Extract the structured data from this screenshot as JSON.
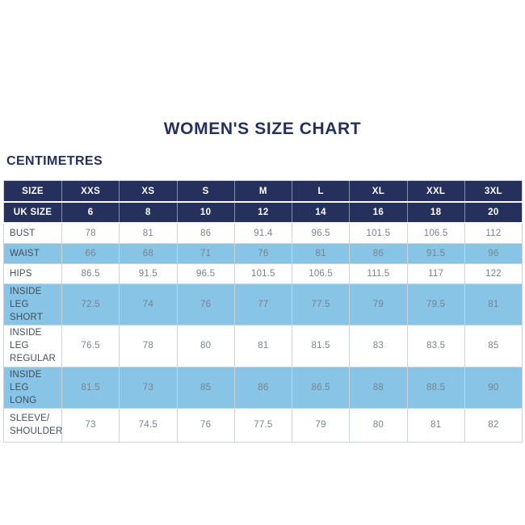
{
  "page": {
    "title": "WOMEN'S SIZE CHART",
    "units_label": "CENTIMETRES"
  },
  "colors": {
    "navy": "#25315C",
    "light_blue": "#87C4E5",
    "value_text": "#79838E",
    "label_text": "#454D5A",
    "border": "#CDD2D7",
    "header_text": "#FFFFFF"
  },
  "chart_data": {
    "type": "table",
    "title": "WOMEN'S SIZE CHART",
    "units": "CENTIMETRES",
    "header_rows": [
      {
        "label": "SIZE",
        "values": [
          "XXS",
          "XS",
          "S",
          "M",
          "L",
          "XL",
          "XXL",
          "3XL"
        ]
      },
      {
        "label": "UK SIZE",
        "values": [
          "6",
          "8",
          "10",
          "12",
          "14",
          "16",
          "18",
          "20"
        ]
      }
    ],
    "rows": [
      {
        "label": "BUST",
        "values": [
          "78",
          "81",
          "86",
          "91.4",
          "96.5",
          "101.5",
          "106.5",
          "112"
        ],
        "shaded": false
      },
      {
        "label": "WAIST",
        "values": [
          "66",
          "68",
          "71",
          "76",
          "81",
          "86",
          "91.5",
          "96"
        ],
        "shaded": true
      },
      {
        "label": "HIPS",
        "values": [
          "86.5",
          "91.5",
          "96.5",
          "101.5",
          "106.5",
          "111.5",
          "117",
          "122"
        ],
        "shaded": false
      },
      {
        "label": "INSIDE LEG\nSHORT",
        "values": [
          "72.5",
          "74",
          "76",
          "77",
          "77.5",
          "79",
          "79.5",
          "81"
        ],
        "shaded": true
      },
      {
        "label": "INSIDE LEG\nREGULAR",
        "values": [
          "76.5",
          "78",
          "80",
          "81",
          "81.5",
          "83",
          "83.5",
          "85"
        ],
        "shaded": false
      },
      {
        "label": "INSIDE LEG\nLONG",
        "values": [
          "81.5",
          "73",
          "85",
          "86",
          "86.5",
          "88",
          "88.5",
          "90"
        ],
        "shaded": true
      },
      {
        "label": "SLEEVE/\nSHOULDER",
        "values": [
          "73",
          "74.5",
          "76",
          "77.5",
          "79",
          "80",
          "81",
          "82"
        ],
        "shaded": false
      }
    ]
  }
}
